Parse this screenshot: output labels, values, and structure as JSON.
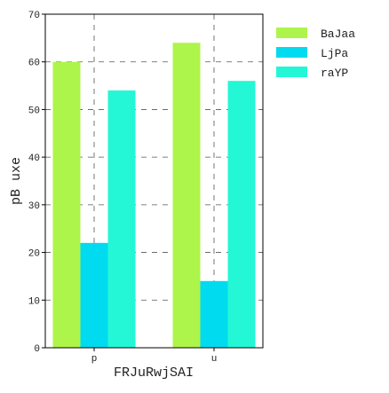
{
  "chart_data": {
    "type": "bar",
    "title": "",
    "xlabel": "FRJuRwjSAI",
    "ylabel": "pB uxe",
    "categories": [
      "p",
      "u"
    ],
    "series": [
      {
        "name": "BaJaa",
        "values": [
          60,
          64
        ],
        "color": "#adf54a"
      },
      {
        "name": "LjPa",
        "values": [
          22,
          14
        ],
        "color": "#00dbf0"
      },
      {
        "name": "raYP",
        "values": [
          54,
          56
        ],
        "color": "#24f7d6"
      }
    ],
    "ylim": [
      0,
      70
    ],
    "yticks": [
      0,
      10,
      20,
      30,
      40,
      50,
      60,
      70
    ],
    "grid": true,
    "grid_style": "dashed",
    "legend_position": "outside-top-right"
  }
}
